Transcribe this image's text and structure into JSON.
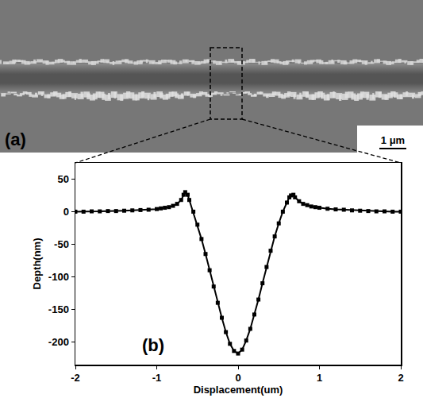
{
  "image_panel": {
    "label": "(a)",
    "scale_bar": "1 μm"
  },
  "chart_data": {
    "type": "line",
    "x_label": "Displacement(um)",
    "y_label": "Depth(nm)",
    "annotations": [
      "(b)"
    ],
    "x": [
      -2,
      -1.9,
      -1.8,
      -1.7,
      -1.6,
      -1.5,
      -1.4,
      -1.3,
      -1.2,
      -1.1,
      -1.0,
      -0.95,
      -0.9,
      -0.85,
      -0.8,
      -0.75,
      -0.7,
      -0.67,
      -0.65,
      -0.62,
      -0.6,
      -0.55,
      -0.5,
      -0.45,
      -0.4,
      -0.35,
      -0.3,
      -0.25,
      -0.2,
      -0.15,
      -0.1,
      -0.05,
      0,
      0.05,
      0.1,
      0.15,
      0.2,
      0.25,
      0.3,
      0.35,
      0.4,
      0.45,
      0.5,
      0.55,
      0.6,
      0.63,
      0.65,
      0.68,
      0.7,
      0.75,
      0.8,
      0.85,
      0.9,
      0.95,
      1.0,
      1.1,
      1.2,
      1.3,
      1.4,
      1.5,
      1.6,
      1.7,
      1.8,
      1.9,
      2.0
    ],
    "values": [
      0,
      0,
      0.5,
      0.5,
      1,
      1,
      1.5,
      2,
      2.5,
      3,
      4,
      5,
      6,
      7,
      9,
      12,
      18,
      26,
      30,
      26,
      18,
      0,
      -20,
      -42,
      -65,
      -90,
      -115,
      -140,
      -163,
      -185,
      -203,
      -214,
      -218,
      -212,
      -198,
      -180,
      -158,
      -135,
      -110,
      -85,
      -60,
      -38,
      -18,
      0,
      14,
      22,
      25,
      26,
      22,
      16,
      12,
      10,
      8,
      7,
      6,
      4.5,
      3.5,
      3,
      2,
      1.5,
      1,
      0.5,
      0.5,
      0,
      0
    ],
    "color": "#000000",
    "marker": "square",
    "xlim": [
      -2,
      2
    ],
    "xticks": [
      -2,
      -1,
      0,
      1,
      2
    ],
    "ylim": [
      -235,
      75
    ],
    "yticks": [
      -200,
      -150,
      -100,
      -50,
      0,
      50
    ],
    "grid": false
  }
}
